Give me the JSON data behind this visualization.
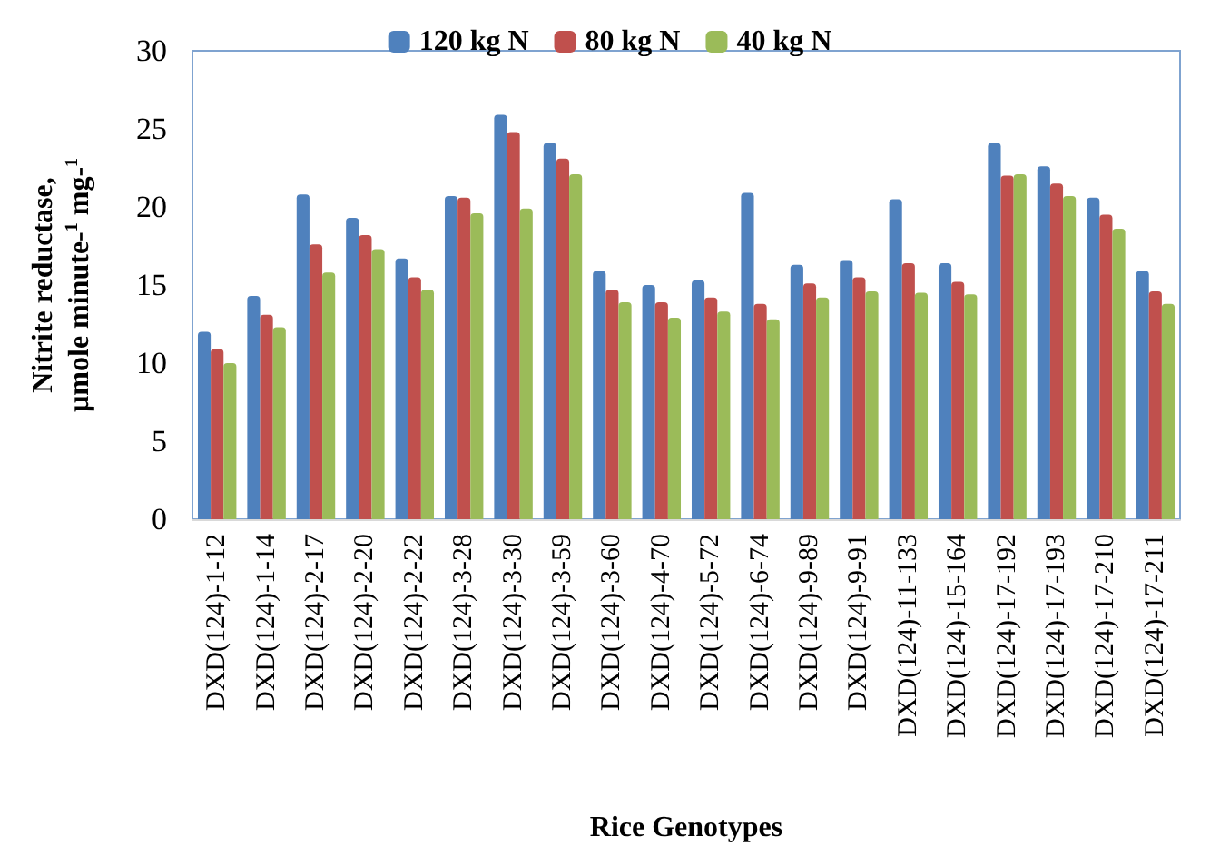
{
  "chart_data": {
    "type": "bar",
    "xlabel": "Rice Genotypes",
    "ylabel": "Nitrite reductase,\nµmole minute-$^{1}$ mg-$^{1}$",
    "categories": [
      "DXD(124)-1-12",
      "DXD(124)-1-14",
      "DXD(124)-2-17",
      "DXD(124)-2-20",
      "DXD(124)-2-22",
      "DXD(124)-3-28",
      "DXD(124)-3-30",
      "DXD(124)-3-59",
      "DXD(124)-3-60",
      "DXD(124)-4-70",
      "DXD(124)-5-72",
      "DXD(124)-6-74",
      "DXD(124)-9-89",
      "DXD(124)-9-91",
      "DXD(124)-11-133",
      "DXD(124)-15-164",
      "DXD(124)-17-192",
      "DXD(124)-17-193",
      "DXD(124)-17-210",
      "DXD(124)-17-211"
    ],
    "series": [
      {
        "name": "120 kg N",
        "color": "#4f81bd",
        "values": [
          12.0,
          14.3,
          20.8,
          19.3,
          16.7,
          20.7,
          25.9,
          24.1,
          15.9,
          15.0,
          15.3,
          20.9,
          16.3,
          16.6,
          20.5,
          16.4,
          24.1,
          22.6,
          20.6,
          15.9
        ]
      },
      {
        "name": "80 kg N",
        "color": "#c0504d",
        "values": [
          10.9,
          13.1,
          17.6,
          18.2,
          15.5,
          20.6,
          24.8,
          23.1,
          14.7,
          13.9,
          14.2,
          13.8,
          15.1,
          15.5,
          16.4,
          15.2,
          22.0,
          21.5,
          19.5,
          14.6
        ]
      },
      {
        "name": "40 kg N",
        "color": "#9bbb59",
        "values": [
          10.0,
          12.3,
          15.8,
          17.3,
          14.7,
          19.6,
          19.9,
          22.1,
          13.9,
          12.9,
          13.3,
          12.8,
          14.2,
          14.6,
          14.5,
          14.4,
          22.1,
          20.7,
          18.6,
          13.8
        ]
      }
    ],
    "ylim": [
      0,
      30
    ],
    "yticks": [
      0,
      5,
      10,
      15,
      20,
      25,
      30
    ],
    "grid": false,
    "legend": "top"
  }
}
